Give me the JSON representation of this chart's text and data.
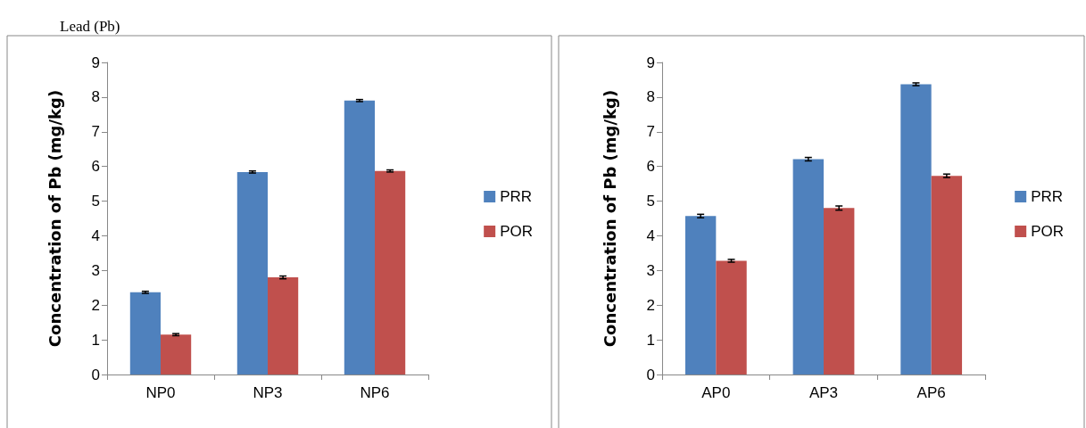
{
  "chart_data": [
    {
      "type": "bar",
      "title": "Lead (Pb)",
      "ylabel": "Concentration of Pb (mg/kg)",
      "categories": [
        "NP0",
        "NP3",
        "NP6"
      ],
      "series": [
        {
          "name": "PRR",
          "color": "#4f81bd",
          "values": [
            2.37,
            5.84,
            7.9
          ],
          "errors": [
            0.03,
            0.03,
            0.03
          ]
        },
        {
          "name": "POR",
          "color": "#c0504d",
          "values": [
            1.15,
            2.8,
            5.87
          ],
          "errors": [
            0.03,
            0.04,
            0.03
          ]
        }
      ],
      "ylim": [
        0,
        9
      ],
      "yticks": [
        0,
        1,
        2,
        3,
        4,
        5,
        6,
        7,
        8,
        9
      ],
      "grid": false,
      "legend": "right"
    },
    {
      "type": "bar",
      "ylabel": "Concentration of Pb (mg/kg)",
      "categories": [
        "AP0",
        "AP3",
        "AP6"
      ],
      "series": [
        {
          "name": "PRR",
          "color": "#4f81bd",
          "values": [
            4.57,
            6.21,
            8.37
          ],
          "errors": [
            0.05,
            0.05,
            0.04
          ]
        },
        {
          "name": "POR",
          "color": "#c0504d",
          "values": [
            3.28,
            4.8,
            5.73
          ],
          "errors": [
            0.04,
            0.06,
            0.05
          ]
        }
      ],
      "ylim": [
        0,
        9
      ],
      "yticks": [
        0,
        1,
        2,
        3,
        4,
        5,
        6,
        7,
        8,
        9
      ],
      "grid": false,
      "legend": "right"
    }
  ]
}
